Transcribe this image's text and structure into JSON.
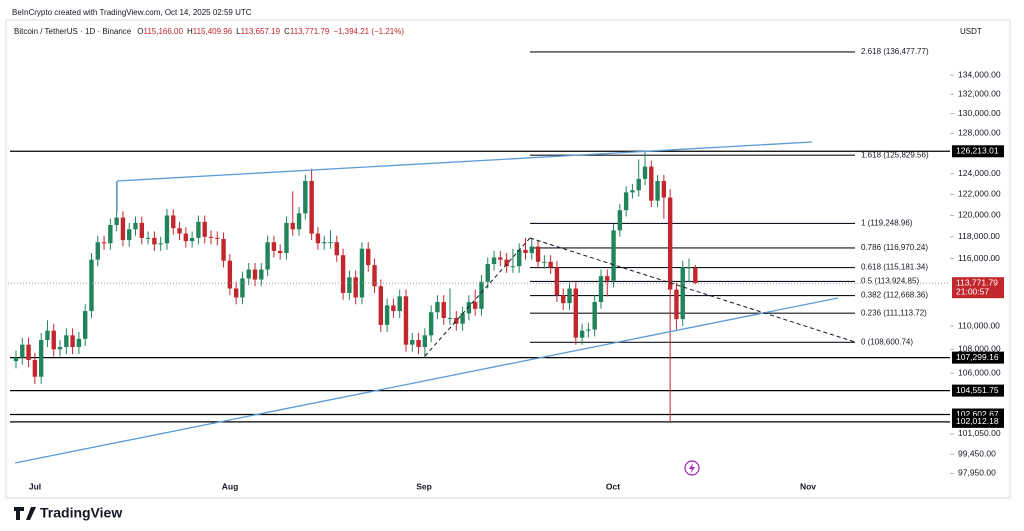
{
  "header": {
    "credit": "BeInCrypto created with TradingView.com, Oct 14, 2025 02:59 UTC",
    "symbol": "Bitcoin / TetherUS · 1D · Binance",
    "quote": [
      {
        "key": "O",
        "value": "115,166.00"
      },
      {
        "key": "H",
        "value": "115,409.96"
      },
      {
        "key": "L",
        "value": "113,657.19"
      },
      {
        "key": "C",
        "value": "113,771.79"
      }
    ],
    "change": "−1,394.21 (−1.21%)",
    "currency": "USDT"
  },
  "chart_data": {
    "type": "candlestick",
    "up_color": "#22845c",
    "down_color": "#c1272d",
    "level_color": "#000000",
    "fib_color": "#131722",
    "log_scale": true,
    "ylim": [
      97450,
      138850
    ],
    "yticks": [
      {
        "value": 134000,
        "label": "134,000.00"
      },
      {
        "value": 132000,
        "label": "132,000.00"
      },
      {
        "value": 130000,
        "label": "130,000.00"
      },
      {
        "value": 128000,
        "label": "128,000.00"
      },
      {
        "value": 124000,
        "label": "124,000.00"
      },
      {
        "value": 122000,
        "label": "122,000.00"
      },
      {
        "value": 120000,
        "label": "120,000.00"
      },
      {
        "value": 118000,
        "label": "118,000.00"
      },
      {
        "value": 116000,
        "label": "116,000.00"
      },
      {
        "value": 110000,
        "label": "110,000.00"
      },
      {
        "value": 108000,
        "label": "108,000.00"
      },
      {
        "value": 106000,
        "label": "106,000.00"
      },
      {
        "value": 101050,
        "label": "101,050.00"
      },
      {
        "value": 99450,
        "label": "99,450.00"
      },
      {
        "value": 97950,
        "label": "97,950.00"
      }
    ],
    "x_labels": [
      "Jul",
      "Aug",
      "Sep",
      "Oct",
      "Nov"
    ],
    "levels": [
      {
        "value": 126213.01,
        "label": "126,213.01"
      },
      {
        "value": 107299.16,
        "label": "107,299.16"
      },
      {
        "value": 104551.75,
        "label": "104,551.75"
      },
      {
        "value": 102602.67,
        "label": "102,602.67"
      },
      {
        "value": 102012.18,
        "label": "102,012.18"
      }
    ],
    "fib_levels": [
      {
        "value": 136477.77,
        "label": "2.618 (136,477.77)"
      },
      {
        "value": 125829.56,
        "label": "1.618 (125,829.56)"
      },
      {
        "value": 119248.96,
        "label": "1 (119,248.96)"
      },
      {
        "value": 116970.24,
        "label": "0.786 (116,970.24)"
      },
      {
        "value": 115181.34,
        "label": "0.618 (115,181.34)"
      },
      {
        "value": 113924.85,
        "label": "0.5 (113,924.85)"
      },
      {
        "value": 112668.36,
        "label": "0.382 (112,668.36)"
      },
      {
        "value": 111113.72,
        "label": "0.236 (111,113.72)"
      },
      {
        "value": 108600.74,
        "label": "0 (108,600.74)"
      }
    ],
    "last_price": {
      "value": 113771.79,
      "label": "113,771.79"
    },
    "countdown": "21:00:57",
    "ohlc": [
      [
        107000,
        107900,
        106400,
        107300
      ],
      [
        107300,
        109000,
        106700,
        108400
      ],
      [
        108400,
        109000,
        106500,
        107100
      ],
      [
        107100,
        107700,
        105100,
        105700
      ],
      [
        105700,
        109400,
        105100,
        108800
      ],
      [
        108800,
        110500,
        108200,
        109600
      ],
      [
        109600,
        110200,
        107400,
        108000
      ],
      [
        108000,
        108800,
        107400,
        108200
      ],
      [
        108200,
        109800,
        107600,
        109200
      ],
      [
        109200,
        109800,
        107600,
        108200
      ],
      [
        108200,
        109500,
        107600,
        108900
      ],
      [
        108900,
        111900,
        108300,
        111300
      ],
      [
        111300,
        116500,
        110700,
        115900
      ],
      [
        115900,
        118100,
        115300,
        117500
      ],
      [
        117500,
        118100,
        116800,
        117400
      ],
      [
        117400,
        119700,
        116800,
        119100
      ],
      [
        119100,
        123200,
        118500,
        119800
      ],
      [
        119800,
        120400,
        117100,
        117700
      ],
      [
        117700,
        119300,
        117100,
        118700
      ],
      [
        118700,
        119900,
        118100,
        119300
      ],
      [
        119300,
        119900,
        117300,
        117900
      ],
      [
        117900,
        118500,
        117300,
        117900
      ],
      [
        117900,
        118500,
        116700,
        117300
      ],
      [
        117300,
        118000,
        116700,
        117400
      ],
      [
        117400,
        120600,
        116800,
        120000
      ],
      [
        120000,
        120600,
        118200,
        118800
      ],
      [
        118800,
        119400,
        117700,
        118300
      ],
      [
        118300,
        118900,
        117000,
        117600
      ],
      [
        117600,
        118500,
        117000,
        117900
      ],
      [
        117900,
        120000,
        117300,
        119400
      ],
      [
        119400,
        120000,
        117400,
        118000
      ],
      [
        118000,
        118600,
        117300,
        117900
      ],
      [
        117900,
        118500,
        117200,
        117800
      ],
      [
        117800,
        118400,
        115200,
        115800
      ],
      [
        115800,
        116400,
        112700,
        113300
      ],
      [
        113300,
        113900,
        111900,
        112500
      ],
      [
        112500,
        114800,
        111900,
        114200
      ],
      [
        114200,
        115600,
        113600,
        115000
      ],
      [
        115000,
        115600,
        113500,
        114100
      ],
      [
        114100,
        115600,
        113500,
        115000
      ],
      [
        115000,
        118100,
        114400,
        117500
      ],
      [
        117500,
        118100,
        116100,
        116700
      ],
      [
        116700,
        117300,
        115900,
        116500
      ],
      [
        116500,
        119900,
        115900,
        119300
      ],
      [
        119300,
        122300,
        118100,
        118700
      ],
      [
        118700,
        120800,
        118100,
        120200
      ],
      [
        120200,
        123900,
        119600,
        123300
      ],
      [
        123300,
        124500,
        117700,
        118300
      ],
      [
        118300,
        118900,
        116800,
        117400
      ],
      [
        117400,
        118100,
        116800,
        117500
      ],
      [
        117500,
        118600,
        116900,
        117500
      ],
      [
        117500,
        118100,
        115700,
        116300
      ],
      [
        116300,
        116900,
        112300,
        112900
      ],
      [
        112900,
        114900,
        112300,
        114300
      ],
      [
        114300,
        114900,
        111900,
        112500
      ],
      [
        112500,
        117500,
        111900,
        116900
      ],
      [
        116900,
        117500,
        114800,
        115400
      ],
      [
        115400,
        116000,
        112900,
        113500
      ],
      [
        113500,
        114100,
        109500,
        110100
      ],
      [
        110100,
        112400,
        109500,
        111800
      ],
      [
        111800,
        112400,
        110700,
        111300
      ],
      [
        111300,
        113200,
        110700,
        112600
      ],
      [
        112600,
        113200,
        107800,
        108400
      ],
      [
        108400,
        109400,
        107800,
        108800
      ],
      [
        108800,
        109400,
        107600,
        108200
      ],
      [
        108200,
        109800,
        107300,
        109200
      ],
      [
        109200,
        111800,
        108600,
        111200
      ],
      [
        111200,
        112700,
        110600,
        112100
      ],
      [
        112100,
        112700,
        110100,
        110700
      ],
      [
        110700,
        113300,
        110100,
        110700
      ],
      [
        110700,
        111300,
        109600,
        110200
      ],
      [
        110200,
        111700,
        109600,
        111100
      ],
      [
        111100,
        112700,
        110500,
        112100
      ],
      [
        112100,
        113200,
        110900,
        111500
      ],
      [
        111500,
        114500,
        110900,
        113900
      ],
      [
        113900,
        116100,
        113300,
        115500
      ],
      [
        115500,
        116700,
        114900,
        116100
      ],
      [
        116100,
        116700,
        115300,
        115900
      ],
      [
        115900,
        116500,
        114700,
        115300
      ],
      [
        115300,
        116900,
        114700,
        115300
      ],
      [
        115300,
        117400,
        114700,
        116800
      ],
      [
        116800,
        117900,
        115900,
        116500
      ],
      [
        116500,
        117900,
        115900,
        117100
      ],
      [
        117100,
        117700,
        115100,
        115700
      ],
      [
        115700,
        116300,
        115100,
        115700
      ],
      [
        115700,
        116300,
        114600,
        115200
      ],
      [
        115200,
        115800,
        112100,
        112700
      ],
      [
        112700,
        113300,
        111400,
        112000
      ],
      [
        112000,
        113900,
        111400,
        113300
      ],
      [
        113300,
        113900,
        108400,
        109000
      ],
      [
        109000,
        110200,
        108400,
        109600
      ],
      [
        109600,
        110300,
        109000,
        109700
      ],
      [
        109700,
        112700,
        109100,
        112100
      ],
      [
        112100,
        115000,
        111500,
        114400
      ],
      [
        114400,
        115000,
        112600,
        114000
      ],
      [
        114000,
        119200,
        113400,
        118600
      ],
      [
        118600,
        121100,
        118000,
        120500
      ],
      [
        120500,
        122800,
        119900,
        122200
      ],
      [
        122200,
        123000,
        121600,
        122400
      ],
      [
        122400,
        125400,
        121800,
        123500
      ],
      [
        123500,
        126200,
        122900,
        124700
      ],
      [
        124700,
        125300,
        120800,
        121400
      ],
      [
        121400,
        123900,
        120800,
        123300
      ],
      [
        123300,
        123900,
        119700,
        121700
      ],
      [
        121700,
        122500,
        102000,
        113200
      ],
      [
        113200,
        113800,
        109700,
        110600
      ],
      [
        110600,
        115800,
        110000,
        115200
      ],
      [
        115200,
        116000,
        113900,
        115200
      ],
      [
        115166,
        115409.96,
        113657.19,
        113771.79
      ]
    ]
  },
  "footer": {
    "brand": "TradingView"
  }
}
